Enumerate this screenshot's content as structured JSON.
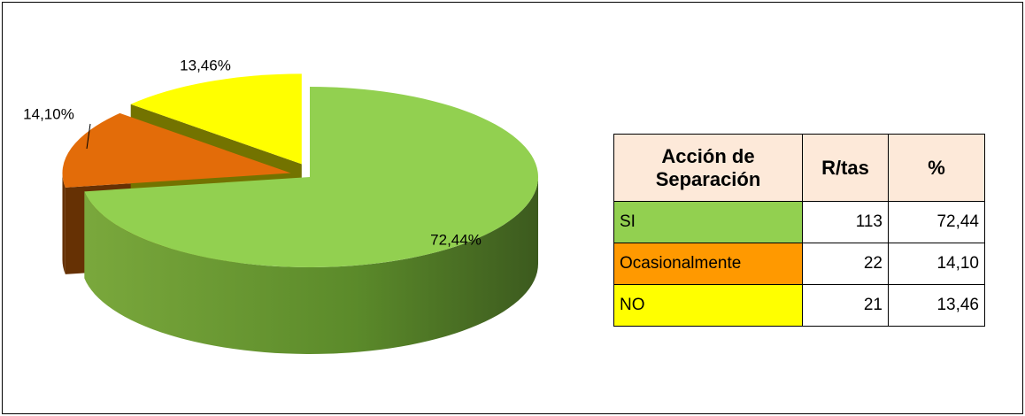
{
  "chart_data": {
    "type": "pie",
    "categories": [
      "SI",
      "Ocasionalmente",
      "NO"
    ],
    "values": [
      72.44,
      14.1,
      13.46
    ],
    "value_labels": [
      "72,44%",
      "14,10%",
      "13,46%"
    ],
    "colors": [
      "#92d050",
      "#e36c09",
      "#ffff00"
    ]
  },
  "table": {
    "header": [
      "Acción de Separación",
      "R/tas",
      "%"
    ],
    "rows": [
      [
        "SI",
        "113",
        "72,44"
      ],
      [
        "Ocasionalmente",
        "22",
        "14,10"
      ],
      [
        "NO",
        "21",
        "13,46"
      ]
    ],
    "row_colors": [
      "#92d050",
      "#ff9900",
      "#ffff00"
    ],
    "header_color": "#fde9d9"
  }
}
